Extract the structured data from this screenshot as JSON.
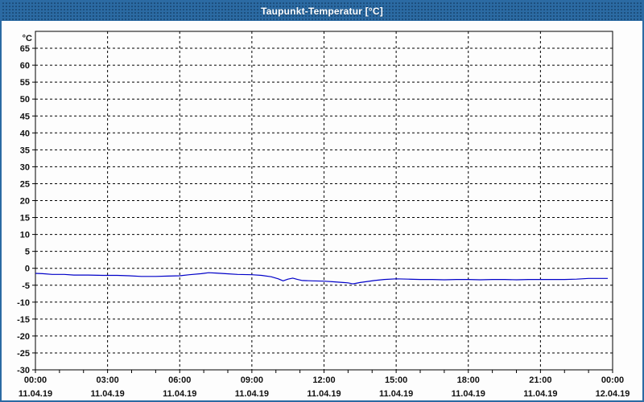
{
  "window": {
    "title": "Taupunkt-Temperatur [°C]"
  },
  "colors": {
    "titlebar_bg": "#2b6aa3",
    "window_border": "#2b6aa3",
    "plot_bg": "#fdfdfd",
    "grid_color": "#000000",
    "axis_color": "#000000",
    "label_color": "#111111",
    "series_color": "#0000c8"
  },
  "chart_data": {
    "type": "line",
    "title": "Taupunkt-Temperatur [°C]",
    "ylabel": "°C",
    "xlabel": "",
    "legend": "none",
    "grid": "dashed",
    "ylim": [
      -30,
      70
    ],
    "yticks": [
      65,
      60,
      55,
      50,
      45,
      40,
      35,
      30,
      25,
      20,
      15,
      10,
      5,
      0,
      -5,
      -10,
      -15,
      -20,
      -25,
      -30
    ],
    "xlim_hours": [
      0,
      24
    ],
    "minor_xtick_every_hours": 1,
    "xticks": [
      {
        "hour": 0,
        "time": "00:00",
        "date": "11.04.19"
      },
      {
        "hour": 3,
        "time": "03:00",
        "date": "11.04.19"
      },
      {
        "hour": 6,
        "time": "06:00",
        "date": "11.04.19"
      },
      {
        "hour": 9,
        "time": "09:00",
        "date": "11.04.19"
      },
      {
        "hour": 12,
        "time": "12:00",
        "date": "11.04.19"
      },
      {
        "hour": 15,
        "time": "15:00",
        "date": "11.04.19"
      },
      {
        "hour": 18,
        "time": "18:00",
        "date": "11.04.19"
      },
      {
        "hour": 21,
        "time": "21:00",
        "date": "11.04.19"
      },
      {
        "hour": 24,
        "time": "00:00",
        "date": "12.04.19"
      }
    ],
    "series": [
      {
        "name": "Taupunkt-Temperatur",
        "color": "#0000c8",
        "points": [
          [
            0.0,
            -1.5
          ],
          [
            0.3,
            -1.6
          ],
          [
            0.7,
            -1.8
          ],
          [
            1.2,
            -1.8
          ],
          [
            1.6,
            -2.0
          ],
          [
            2.2,
            -2.0
          ],
          [
            2.8,
            -2.1
          ],
          [
            3.4,
            -2.1
          ],
          [
            3.9,
            -2.2
          ],
          [
            4.4,
            -2.4
          ],
          [
            5.0,
            -2.4
          ],
          [
            5.5,
            -2.3
          ],
          [
            6.0,
            -2.2
          ],
          [
            6.4,
            -1.9
          ],
          [
            6.9,
            -1.6
          ],
          [
            7.2,
            -1.3
          ],
          [
            7.5,
            -1.4
          ],
          [
            7.9,
            -1.6
          ],
          [
            8.4,
            -1.8
          ],
          [
            9.0,
            -1.9
          ],
          [
            9.4,
            -2.1
          ],
          [
            9.8,
            -2.5
          ],
          [
            10.1,
            -3.1
          ],
          [
            10.3,
            -3.7
          ],
          [
            10.5,
            -3.2
          ],
          [
            10.7,
            -2.9
          ],
          [
            10.9,
            -3.3
          ],
          [
            11.1,
            -3.6
          ],
          [
            11.5,
            -3.7
          ],
          [
            12.0,
            -3.8
          ],
          [
            12.4,
            -4.0
          ],
          [
            12.8,
            -4.2
          ],
          [
            13.0,
            -4.3
          ],
          [
            13.2,
            -4.6
          ],
          [
            13.5,
            -4.2
          ],
          [
            13.8,
            -3.9
          ],
          [
            14.1,
            -3.6
          ],
          [
            14.5,
            -3.3
          ],
          [
            15.0,
            -3.1
          ],
          [
            15.5,
            -3.2
          ],
          [
            16.0,
            -3.3
          ],
          [
            16.5,
            -3.3
          ],
          [
            17.0,
            -3.4
          ],
          [
            17.5,
            -3.3
          ],
          [
            18.0,
            -3.3
          ],
          [
            18.5,
            -3.4
          ],
          [
            19.0,
            -3.3
          ],
          [
            19.5,
            -3.3
          ],
          [
            20.0,
            -3.4
          ],
          [
            20.5,
            -3.3
          ],
          [
            21.0,
            -3.3
          ],
          [
            21.5,
            -3.3
          ],
          [
            22.0,
            -3.3
          ],
          [
            22.5,
            -3.2
          ],
          [
            23.0,
            -3.0
          ],
          [
            23.4,
            -3.0
          ],
          [
            23.8,
            -3.0
          ]
        ]
      }
    ]
  }
}
